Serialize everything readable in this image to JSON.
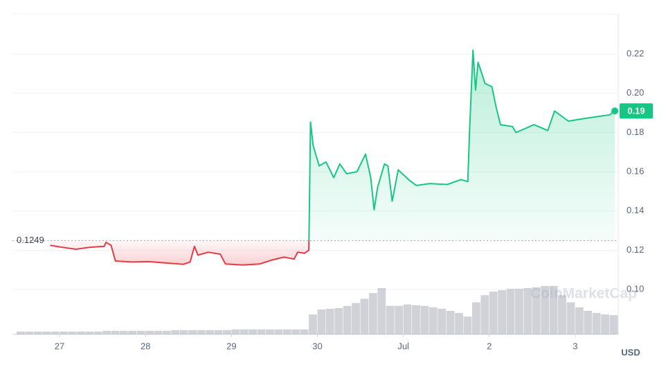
{
  "chart_data": {
    "type": "line",
    "x_axis_unit": "USD",
    "watermark": "CoinMarketCap",
    "baseline": 0.1249,
    "last_value_label": "0.19",
    "up_color": "#16c784",
    "down_color": "#ea3943",
    "volume_color": "#a9adb8",
    "grid": true,
    "xlim": [
      -0.548,
      6.5
    ],
    "ylim": [
      0.0771,
      0.2405
    ],
    "xticks": [
      {
        "value": 0,
        "label": "27"
      },
      {
        "value": 1,
        "label": "28"
      },
      {
        "value": 2,
        "label": "29"
      },
      {
        "value": 3,
        "label": "30"
      },
      {
        "value": 4,
        "label": "Jul"
      },
      {
        "value": 5,
        "label": "2"
      },
      {
        "value": 6,
        "label": "3"
      }
    ],
    "yticks": [
      {
        "value": 0.1,
        "label": "0.10"
      },
      0.12,
      0.14,
      0.16,
      0.18,
      {
        "value": 0.2,
        "label": "0.20"
      },
      0.22
    ],
    "x": [
      -0.11,
      0.03,
      0.19,
      0.35,
      0.52,
      0.54,
      0.6,
      0.65,
      0.84,
      1.04,
      1.24,
      1.44,
      1.52,
      1.57,
      1.61,
      1.73,
      1.87,
      1.93,
      2.13,
      2.33,
      2.47,
      2.61,
      2.73,
      2.77,
      2.85,
      2.9,
      2.92,
      2.95,
      3.02,
      3.1,
      3.19,
      3.26,
      3.34,
      3.46,
      3.56,
      3.62,
      3.66,
      3.7,
      3.78,
      3.82,
      3.87,
      3.94,
      4.06,
      4.15,
      4.31,
      4.51,
      4.67,
      4.75,
      4.77,
      4.81,
      4.84,
      4.87,
      4.95,
      5.03,
      5.08,
      5.13,
      5.27,
      5.31,
      5.52,
      5.68,
      5.76,
      5.92,
      6.08,
      6.24,
      6.4,
      6.46
    ],
    "values": [
      0.1225,
      0.1215,
      0.1205,
      0.1215,
      0.122,
      0.124,
      0.1225,
      0.1145,
      0.114,
      0.1142,
      0.1135,
      0.1128,
      0.114,
      0.122,
      0.1175,
      0.119,
      0.118,
      0.113,
      0.1125,
      0.113,
      0.115,
      0.1165,
      0.1155,
      0.119,
      0.1185,
      0.12,
      0.1854,
      0.1734,
      0.163,
      0.165,
      0.157,
      0.164,
      0.159,
      0.16,
      0.169,
      0.157,
      0.1406,
      0.152,
      0.164,
      0.163,
      0.145,
      0.161,
      0.156,
      0.153,
      0.154,
      0.1535,
      0.156,
      0.155,
      0.18,
      0.222,
      0.2016,
      0.2158,
      0.205,
      0.2034,
      0.1928,
      0.184,
      0.183,
      0.18,
      0.184,
      0.181,
      0.191,
      0.1858,
      0.187,
      0.188,
      0.189,
      0.191
    ],
    "volume": {
      "x": [
        -0.5,
        -0.4,
        -0.3,
        -0.2,
        -0.1,
        0,
        0.1,
        0.2,
        0.3,
        0.4,
        0.5,
        0.6,
        0.7,
        0.8,
        0.9,
        1,
        1.1,
        1.2,
        1.3,
        1.4,
        1.5,
        1.6,
        1.7,
        1.8,
        1.9,
        2,
        2.1,
        2.2,
        2.3,
        2.4,
        2.5,
        2.6,
        2.7,
        2.8,
        2.9,
        3,
        3.1,
        3.2,
        3.3,
        3.4,
        3.5,
        3.6,
        3.7,
        3.8,
        3.9,
        4,
        4.1,
        4.2,
        4.3,
        4.4,
        4.5,
        4.6,
        4.7,
        4.8,
        4.9,
        5,
        5.1,
        5.2,
        5.3,
        5.4,
        5.5,
        5.6,
        5.7,
        5.8,
        5.9,
        6,
        6.1,
        6.2,
        6.3,
        6.4
      ],
      "values": [
        4,
        4,
        4,
        4,
        4,
        4,
        4,
        4,
        4,
        4,
        5,
        5,
        5,
        5,
        5,
        5,
        5,
        5,
        6,
        6,
        6,
        6,
        6,
        6,
        6,
        7,
        7,
        7,
        7,
        7,
        7,
        7,
        7,
        7,
        28,
        35,
        36,
        37,
        40,
        44,
        50,
        58,
        65,
        40,
        40,
        42,
        41,
        40,
        38,
        36,
        33,
        30,
        25,
        45,
        55,
        60,
        62,
        64,
        64,
        65,
        66,
        68,
        68,
        55,
        45,
        38,
        33,
        30,
        28,
        27
      ]
    }
  }
}
